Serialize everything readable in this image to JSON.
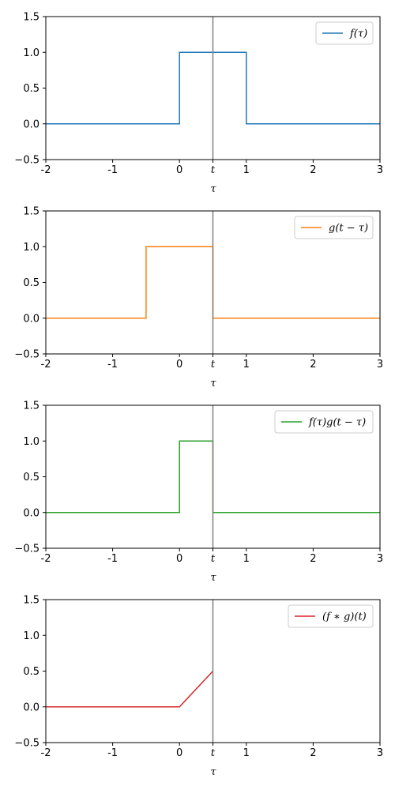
{
  "chart_data": [
    {
      "type": "line",
      "xlabel": "τ",
      "xlim": [
        -2,
        3
      ],
      "ylim": [
        -0.5,
        1.5
      ],
      "xticks": [
        {
          "value": -2,
          "label": "-2"
        },
        {
          "value": -1,
          "label": "-1"
        },
        {
          "value": 0,
          "label": "0"
        },
        {
          "value": 0.5,
          "label": "t"
        },
        {
          "value": 1,
          "label": "1"
        },
        {
          "value": 2,
          "label": "2"
        },
        {
          "value": 3,
          "label": "3"
        }
      ],
      "yticks": [
        {
          "value": -0.5,
          "label": "−0.5"
        },
        {
          "value": 0,
          "label": "0.0"
        },
        {
          "value": 0.5,
          "label": "0.5"
        },
        {
          "value": 1,
          "label": "1.0"
        },
        {
          "value": 1.5,
          "label": "1.5"
        }
      ],
      "vline_x": 0.5,
      "vline_color": "#808080",
      "legend_position": "top-right",
      "series": [
        {
          "name": "f(τ)",
          "color": "#1f77b4",
          "x": [
            -2,
            0,
            0,
            1,
            1,
            3
          ],
          "y": [
            0,
            0,
            1,
            1,
            0,
            0
          ]
        }
      ]
    },
    {
      "type": "line",
      "xlabel": "τ",
      "xlim": [
        -2,
        3
      ],
      "ylim": [
        -0.5,
        1.5
      ],
      "xticks": [
        {
          "value": -2,
          "label": "-2"
        },
        {
          "value": -1,
          "label": "-1"
        },
        {
          "value": 0,
          "label": "0"
        },
        {
          "value": 0.5,
          "label": "t"
        },
        {
          "value": 1,
          "label": "1"
        },
        {
          "value": 2,
          "label": "2"
        },
        {
          "value": 3,
          "label": "3"
        }
      ],
      "yticks": [
        {
          "value": -0.5,
          "label": "−0.5"
        },
        {
          "value": 0,
          "label": "0.0"
        },
        {
          "value": 0.5,
          "label": "0.5"
        },
        {
          "value": 1,
          "label": "1.0"
        },
        {
          "value": 1.5,
          "label": "1.5"
        }
      ],
      "vline_x": 0.5,
      "vline_color": "#808080",
      "legend_position": "top-right",
      "series": [
        {
          "name": "g(t − τ)",
          "color": "#ff7f0e",
          "x": [
            -2,
            -0.5,
            -0.5,
            0.5,
            0.5,
            3
          ],
          "y": [
            0,
            0,
            1,
            1,
            0,
            0
          ]
        }
      ]
    },
    {
      "type": "line",
      "xlabel": "τ",
      "xlim": [
        -2,
        3
      ],
      "ylim": [
        -0.5,
        1.5
      ],
      "xticks": [
        {
          "value": -2,
          "label": "-2"
        },
        {
          "value": -1,
          "label": "-1"
        },
        {
          "value": 0,
          "label": "0"
        },
        {
          "value": 0.5,
          "label": "t"
        },
        {
          "value": 1,
          "label": "1"
        },
        {
          "value": 2,
          "label": "2"
        },
        {
          "value": 3,
          "label": "3"
        }
      ],
      "yticks": [
        {
          "value": -0.5,
          "label": "−0.5"
        },
        {
          "value": 0,
          "label": "0.0"
        },
        {
          "value": 0.5,
          "label": "0.5"
        },
        {
          "value": 1,
          "label": "1.0"
        },
        {
          "value": 1.5,
          "label": "1.5"
        }
      ],
      "vline_x": 0.5,
      "vline_color": "#808080",
      "legend_position": "top-right",
      "series": [
        {
          "name": "f(τ)g(t − τ)",
          "color": "#2ca02c",
          "x": [
            -2,
            0,
            0,
            0.5,
            0.5,
            3
          ],
          "y": [
            0,
            0,
            1,
            1,
            0,
            0
          ]
        }
      ]
    },
    {
      "type": "line",
      "xlabel": "τ",
      "xlim": [
        -2,
        3
      ],
      "ylim": [
        -0.5,
        1.5
      ],
      "xticks": [
        {
          "value": -2,
          "label": "-2"
        },
        {
          "value": -1,
          "label": "-1"
        },
        {
          "value": 0,
          "label": "0"
        },
        {
          "value": 0.5,
          "label": "t"
        },
        {
          "value": 1,
          "label": "1"
        },
        {
          "value": 2,
          "label": "2"
        },
        {
          "value": 3,
          "label": "3"
        }
      ],
      "yticks": [
        {
          "value": -0.5,
          "label": "−0.5"
        },
        {
          "value": 0,
          "label": "0.0"
        },
        {
          "value": 0.5,
          "label": "0.5"
        },
        {
          "value": 1,
          "label": "1.0"
        },
        {
          "value": 1.5,
          "label": "1.5"
        }
      ],
      "vline_x": 0.5,
      "vline_color": "#808080",
      "legend_position": "top-right",
      "series": [
        {
          "name": "(f ∗ g)(t)",
          "color": "#d62728",
          "x": [
            -2,
            0,
            0.5
          ],
          "y": [
            0,
            0,
            0.5
          ]
        }
      ]
    }
  ]
}
